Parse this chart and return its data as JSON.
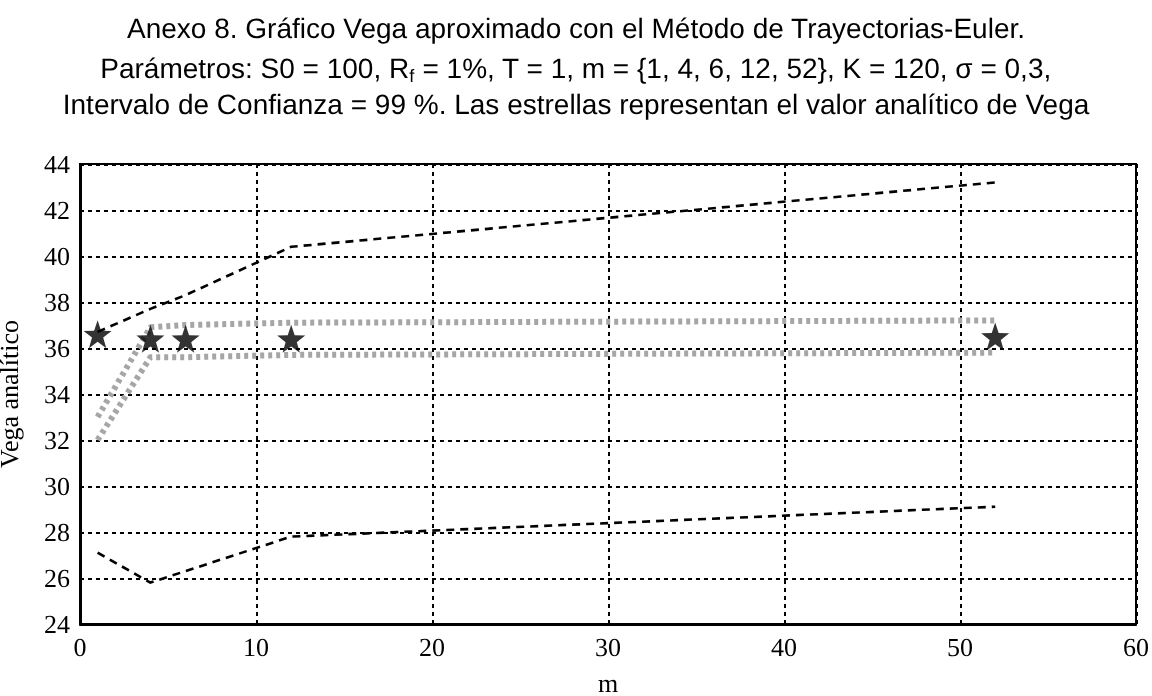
{
  "chart_data": {
    "type": "line",
    "title": "Anexo 8. Gráfico Vega aproximado con el Método de Trayectorias-Euler.",
    "subtitle": "Parámetros: S0 = 100, R$_{f}$ = 1%, T = 1, m = {1, 4, 6, 12, 52}, K = 120, σ = 0,3,\nIntervalo de Confianza = 99 %. Las estrellas representan el valor analítico de Vega",
    "xlabel": "m",
    "ylabel": "Vega analítico",
    "x": [
      1,
      4,
      6,
      12,
      52
    ],
    "series": [
      {
        "color": "#000000",
        "line_style": "dashed",
        "marker": "none",
        "values": [
          36.7,
          37.7,
          38.3,
          40.4,
          43.2
        ]
      },
      {
        "color": "#000000",
        "line_style": "dashed",
        "marker": "none",
        "values": [
          27.1,
          25.8,
          26.3,
          27.8,
          29.1
        ]
      },
      {
        "color": "#a6a6a6",
        "line_style": "dotted",
        "marker": "none",
        "values": [
          33.0,
          36.9,
          37.0,
          37.1,
          37.2
        ]
      },
      {
        "color": "#a6a6a6",
        "line_style": "dotted",
        "marker": "none",
        "values": [
          32.0,
          35.6,
          35.6,
          35.7,
          35.8
        ]
      },
      {
        "type": "scatter",
        "color": "#000000",
        "marker": "star",
        "values": [
          36.6,
          36.4,
          36.4,
          36.4,
          36.5
        ]
      }
    ],
    "xlim": [
      0,
      60
    ],
    "xticks": [
      0,
      10,
      20,
      30,
      40,
      50,
      60
    ],
    "ylim": [
      24,
      44
    ],
    "yticks": [
      24,
      26,
      28,
      30,
      32,
      34,
      36,
      38,
      40,
      42,
      44
    ],
    "grid": true
  }
}
